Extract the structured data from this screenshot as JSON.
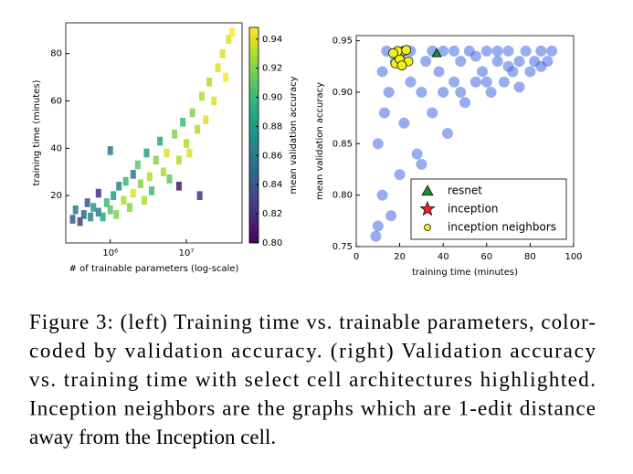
{
  "chart_data": [
    {
      "type": "scatter",
      "x_label": "# of trainable parameters (log-scale)",
      "y_label": "training time (minutes)",
      "log_x": true,
      "xlim": [
        260000,
        54000000
      ],
      "ylim": [
        0,
        93
      ],
      "xticks": [
        {
          "value": 1000000,
          "label": "10⁶"
        },
        {
          "value": 10000000,
          "label": "10⁷"
        }
      ],
      "yticks": [
        20,
        40,
        60,
        80
      ],
      "colormap": "viridis",
      "colorbar": {
        "label": "mean validation accuracy",
        "lim": [
          0.8,
          0.948
        ],
        "ticks": [
          {
            "value": 0.8,
            "label": "0.80"
          },
          {
            "value": 0.82,
            "label": "0.82"
          },
          {
            "value": 0.84,
            "label": "0.84"
          },
          {
            "value": 0.86,
            "label": "0.86"
          },
          {
            "value": 0.88,
            "label": "0.88"
          },
          {
            "value": 0.9,
            "label": "0.90"
          },
          {
            "value": 0.92,
            "label": "0.92"
          },
          {
            "value": 0.94,
            "label": "0.94"
          }
        ]
      },
      "series": [
        {
          "marker": "s",
          "x": [
            320000,
            350000,
            400000,
            450000,
            500000,
            550000,
            600000,
            700000,
            700000,
            800000,
            900000,
            1000000,
            1000000,
            1100000,
            1200000,
            1300000,
            1500000,
            1600000,
            1800000,
            2000000,
            2000000,
            2300000,
            2500000,
            2800000,
            3000000,
            3300000,
            3500000,
            4000000,
            4500000,
            5000000,
            5500000,
            6000000,
            7000000,
            8000000,
            9000000,
            10000000,
            11000000,
            12000000,
            14000000,
            16000000,
            18000000,
            20000000,
            23000000,
            26000000,
            30000000,
            33000000,
            36000000,
            40000000,
            15000000,
            8000000
          ],
          "values": [
            10,
            14,
            9,
            12,
            17,
            11,
            15,
            13,
            21,
            11,
            17,
            14,
            39,
            20,
            12,
            24,
            18,
            26,
            15,
            29,
            21,
            33,
            25,
            18,
            38,
            28,
            22,
            35,
            43,
            30,
            38,
            27,
            46,
            35,
            51,
            42,
            38,
            55,
            48,
            62,
            52,
            68,
            60,
            74,
            80,
            70,
            86,
            89,
            20,
            24
          ],
          "color_values": [
            0.84,
            0.86,
            0.83,
            0.85,
            0.84,
            0.87,
            0.88,
            0.86,
            0.82,
            0.89,
            0.9,
            0.91,
            0.86,
            0.88,
            0.92,
            0.87,
            0.93,
            0.9,
            0.92,
            0.86,
            0.94,
            0.91,
            0.92,
            0.93,
            0.88,
            0.93,
            0.9,
            0.92,
            0.89,
            0.93,
            0.94,
            0.91,
            0.92,
            0.93,
            0.9,
            0.93,
            0.94,
            0.92,
            0.93,
            0.93,
            0.94,
            0.93,
            0.94,
            0.94,
            0.94,
            0.95,
            0.94,
            0.95,
            0.82,
            0.81
          ]
        }
      ]
    },
    {
      "type": "scatter",
      "x_label": "training time (minutes)",
      "y_label": "mean validation accuracy",
      "xlim": [
        0,
        100
      ],
      "ylim": [
        0.75,
        0.955
      ],
      "xticks": [
        0,
        20,
        40,
        60,
        80,
        100
      ],
      "yticks": [
        {
          "value": 0.75,
          "label": "0.75"
        },
        {
          "value": 0.8,
          "label": "0.80"
        },
        {
          "value": 0.85,
          "label": "0.85"
        },
        {
          "value": 0.9,
          "label": "0.90"
        },
        {
          "value": 0.95,
          "label": "0.95"
        }
      ],
      "legend": "lower right",
      "series": [
        {
          "marker": "o",
          "color": "#4169e1",
          "x": [
            10,
            12,
            10,
            13,
            12,
            15,
            18,
            20,
            22,
            25,
            25,
            28,
            30,
            32,
            35,
            38,
            40,
            42,
            45,
            48,
            50,
            52,
            55,
            58,
            60,
            62,
            65,
            68,
            70,
            72,
            75,
            78,
            80,
            82,
            85,
            88,
            90,
            14,
            16,
            9,
            30,
            45,
            55,
            65,
            35,
            22,
            48,
            40,
            60,
            75,
            70,
            85
          ],
          "values": [
            0.77,
            0.8,
            0.85,
            0.88,
            0.92,
            0.9,
            0.93,
            0.82,
            0.87,
            0.91,
            0.94,
            0.84,
            0.9,
            0.93,
            0.88,
            0.92,
            0.94,
            0.86,
            0.91,
            0.93,
            0.89,
            0.94,
            0.91,
            0.92,
            0.94,
            0.9,
            0.93,
            0.91,
            0.94,
            0.92,
            0.93,
            0.94,
            0.92,
            0.93,
            0.94,
            0.93,
            0.94,
            0.94,
            0.78,
            0.76,
            0.83,
            0.94,
            0.935,
            0.94,
            0.94,
            0.94,
            0.9,
            0.9,
            0.91,
            0.905,
            0.925,
            0.925
          ]
        },
        {
          "name": "resnet",
          "marker": "^",
          "color": "#1e8c2e",
          "x": [
            37
          ],
          "values": [
            0.938
          ]
        },
        {
          "name": "inception",
          "marker": "*",
          "color": "#e8202a",
          "x": [
            20
          ],
          "values": [
            0.935
          ]
        },
        {
          "name": "inception neighbors",
          "marker": "o",
          "color": "#f0f020",
          "x": [
            18,
            20,
            22,
            19,
            24,
            21,
            17,
            23
          ],
          "values": [
            0.928,
            0.932,
            0.94,
            0.94,
            0.93,
            0.926,
            0.938,
            0.941
          ]
        }
      ]
    }
  ],
  "caption": [
    "Figure 3: (left) Training time vs. trainable parameters, color-",
    "coded by validation accuracy. (right) Validation accuracy",
    "vs. training time with select cell architectures highlighted.",
    "Inception neighbors are the graphs which are 1-edit distance",
    "away from the Inception cell."
  ]
}
